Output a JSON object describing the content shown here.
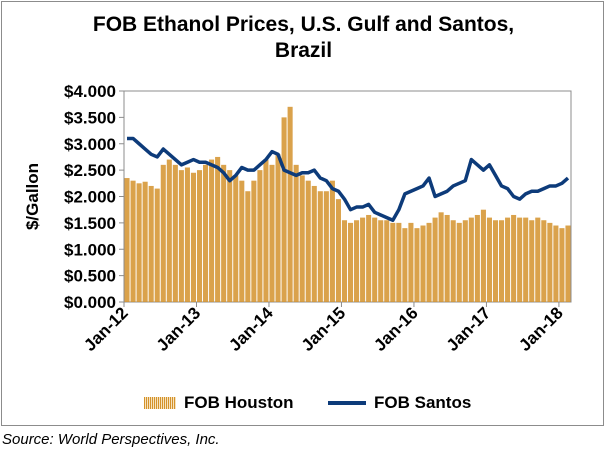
{
  "chart_data": {
    "type": "bar+line",
    "title_lines": [
      "FOB Ethanol Prices, U.S. Gulf and Santos,",
      "Brazil"
    ],
    "ylabel": "$/Gallon",
    "xlabel": "",
    "ylim": [
      0,
      4
    ],
    "y_ticks": [
      "$0.000",
      "$0.500",
      "$1.000",
      "$1.500",
      "$2.000",
      "$2.500",
      "$3.000",
      "$3.500",
      "$4.000"
    ],
    "y_tick_values": [
      0,
      0.5,
      1,
      1.5,
      2,
      2.5,
      3,
      3.5,
      4
    ],
    "x_ticks": [
      "Jan-12",
      "Jan-13",
      "Jan-14",
      "Jan-15",
      "Jan-16",
      "Jan-17",
      "Jan-18"
    ],
    "x_tick_values": [
      "2012-01",
      "2013-01",
      "2014-01",
      "2015-01",
      "2016-01",
      "2017-01",
      "2018-01"
    ],
    "x_range": [
      "2012-01",
      "2018-02"
    ],
    "grid": false,
    "legend_position": "bottom",
    "series": [
      {
        "name": "FOB Houston",
        "type": "bar",
        "color": "#d4922b",
        "x": [
          "2012-01",
          "2012-02",
          "2012-03",
          "2012-04",
          "2012-05",
          "2012-06",
          "2012-07",
          "2012-08",
          "2012-09",
          "2012-10",
          "2012-11",
          "2012-12",
          "2013-01",
          "2013-02",
          "2013-03",
          "2013-04",
          "2013-05",
          "2013-06",
          "2013-07",
          "2013-08",
          "2013-09",
          "2013-10",
          "2013-11",
          "2013-12",
          "2014-01",
          "2014-02",
          "2014-03",
          "2014-04",
          "2014-05",
          "2014-06",
          "2014-07",
          "2014-08",
          "2014-09",
          "2014-10",
          "2014-11",
          "2014-12",
          "2015-01",
          "2015-02",
          "2015-03",
          "2015-04",
          "2015-05",
          "2015-06",
          "2015-07",
          "2015-08",
          "2015-09",
          "2015-10",
          "2015-11",
          "2015-12",
          "2016-01",
          "2016-02",
          "2016-03",
          "2016-04",
          "2016-05",
          "2016-06",
          "2016-07",
          "2016-08",
          "2016-09",
          "2016-10",
          "2016-11",
          "2016-12",
          "2017-01",
          "2017-02",
          "2017-03",
          "2017-04",
          "2017-05",
          "2017-06",
          "2017-07",
          "2017-08",
          "2017-09",
          "2017-10",
          "2017-11",
          "2017-12",
          "2018-01",
          "2018-02"
        ],
        "values": [
          2.35,
          2.3,
          2.25,
          2.28,
          2.2,
          2.15,
          2.6,
          2.7,
          2.6,
          2.5,
          2.55,
          2.45,
          2.5,
          2.6,
          2.7,
          2.75,
          2.6,
          2.5,
          2.4,
          2.3,
          2.1,
          2.3,
          2.5,
          2.7,
          2.6,
          2.8,
          3.5,
          3.7,
          2.6,
          2.4,
          2.3,
          2.2,
          2.1,
          2.1,
          2.3,
          1.95,
          1.55,
          1.5,
          1.55,
          1.6,
          1.65,
          1.6,
          1.55,
          1.55,
          1.5,
          1.5,
          1.4,
          1.5,
          1.4,
          1.45,
          1.5,
          1.6,
          1.7,
          1.65,
          1.55,
          1.5,
          1.55,
          1.6,
          1.65,
          1.75,
          1.6,
          1.55,
          1.55,
          1.6,
          1.65,
          1.6,
          1.6,
          1.55,
          1.6,
          1.55,
          1.5,
          1.45,
          1.4,
          1.45
        ]
      },
      {
        "name": "FOB Santos",
        "type": "line",
        "color": "#0d3b7a",
        "x": [
          "2012-01",
          "2012-02",
          "2012-03",
          "2012-04",
          "2012-05",
          "2012-06",
          "2012-07",
          "2012-08",
          "2012-09",
          "2012-10",
          "2012-11",
          "2012-12",
          "2013-01",
          "2013-02",
          "2013-03",
          "2013-04",
          "2013-05",
          "2013-06",
          "2013-07",
          "2013-08",
          "2013-09",
          "2013-10",
          "2013-11",
          "2013-12",
          "2014-01",
          "2014-02",
          "2014-03",
          "2014-04",
          "2014-05",
          "2014-06",
          "2014-07",
          "2014-08",
          "2014-09",
          "2014-10",
          "2014-11",
          "2014-12",
          "2015-01",
          "2015-02",
          "2015-03",
          "2015-04",
          "2015-05",
          "2015-06",
          "2015-07",
          "2015-08",
          "2015-09",
          "2015-10",
          "2015-11",
          "2015-12",
          "2016-01",
          "2016-02",
          "2016-03",
          "2016-04",
          "2016-05",
          "2016-06",
          "2016-07",
          "2016-08",
          "2016-09",
          "2016-10",
          "2016-11",
          "2016-12",
          "2017-01",
          "2017-02",
          "2017-03",
          "2017-04",
          "2017-05",
          "2017-06",
          "2017-07",
          "2017-08",
          "2017-09",
          "2017-10",
          "2017-11",
          "2017-12",
          "2018-01",
          "2018-02"
        ],
        "values": [
          3.1,
          3.1,
          3.0,
          2.9,
          2.8,
          2.75,
          2.9,
          2.8,
          2.7,
          2.6,
          2.65,
          2.7,
          2.65,
          2.65,
          2.6,
          2.55,
          2.45,
          2.3,
          2.4,
          2.55,
          2.5,
          2.5,
          2.6,
          2.7,
          2.85,
          2.8,
          2.5,
          2.45,
          2.4,
          2.45,
          2.45,
          2.5,
          2.35,
          2.3,
          2.15,
          2.1,
          1.95,
          1.75,
          1.8,
          1.8,
          1.85,
          1.7,
          1.65,
          1.6,
          1.55,
          1.75,
          2.05,
          2.1,
          2.15,
          2.2,
          2.35,
          2.0,
          2.05,
          2.1,
          2.2,
          2.25,
          2.3,
          2.7,
          2.6,
          2.5,
          2.6,
          2.4,
          2.2,
          2.15,
          2.0,
          1.95,
          2.05,
          2.1,
          2.1,
          2.15,
          2.2,
          2.2,
          2.25,
          2.35
        ]
      }
    ]
  },
  "legend": {
    "houston_label": "FOB Houston",
    "santos_label": "FOB Santos"
  },
  "footer": {
    "source": "Source: World Perspectives, Inc."
  }
}
